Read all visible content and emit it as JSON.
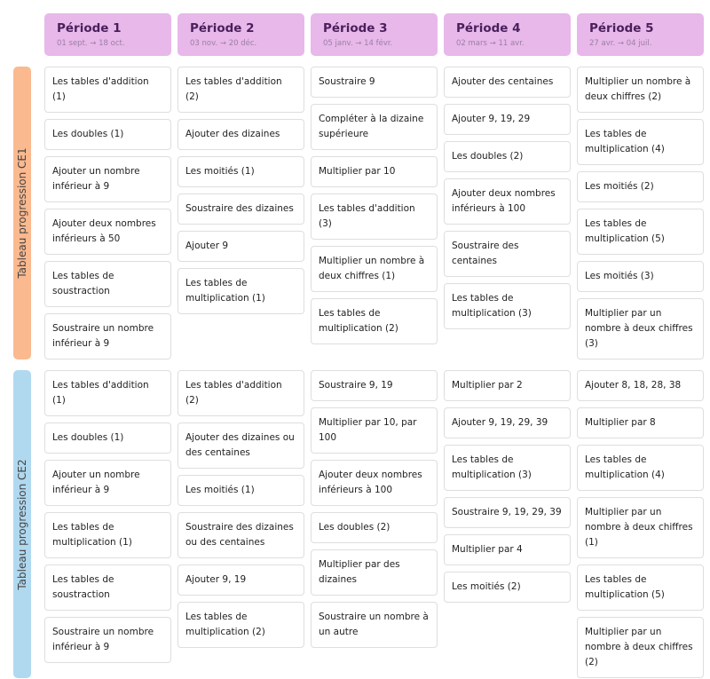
{
  "colors": {
    "header_bg": "#e7b8e9",
    "ce1_bar": "#fbb98f",
    "ce2_bar": "#b0d9f0"
  },
  "periods": [
    {
      "name": "Période 1",
      "dates": "01 sept. → 18 oct."
    },
    {
      "name": "Période 2",
      "dates": "03 nov. → 20 déc."
    },
    {
      "name": "Période 3",
      "dates": "05 janv. → 14 févr."
    },
    {
      "name": "Période 4",
      "dates": "02 mars → 11 avr."
    },
    {
      "name": "Période 5",
      "dates": "27 avr. → 04 juil."
    }
  ],
  "levels": [
    {
      "label": "Tableau progression CE1",
      "columns": [
        [
          "Les tables d'addition (1)",
          "Les doubles (1)",
          "Ajouter un nombre inférieur à 9",
          "Ajouter deux nombres inférieurs à 50",
          "Les tables de soustraction",
          "Soustraire un nombre inférieur à 9"
        ],
        [
          "Les tables d'addition (2)",
          "Ajouter des dizaines",
          "Les moitiés (1)",
          "Soustraire des dizaines",
          "Ajouter 9",
          "Les tables de multiplication (1)"
        ],
        [
          "Soustraire 9",
          "Compléter à la dizaine supérieure",
          "Multiplier par 10",
          "Les tables d'addition (3)",
          "Multiplier un nombre à deux chiffres (1)",
          "Les tables de multiplication (2)"
        ],
        [
          "Ajouter des centaines",
          "Ajouter 9, 19, 29",
          "Les doubles (2)",
          "Ajouter deux nombres inférieurs à 100",
          "Soustraire des centaines",
          "Les tables de multiplication (3)"
        ],
        [
          "Multiplier un nombre à deux chiffres (2)",
          "Les tables de multiplication (4)",
          "Les moitiés (2)",
          "Les tables de multiplication (5)",
          "Les moitiés (3)",
          "Multiplier par un nombre à deux chiffres (3)"
        ]
      ]
    },
    {
      "label": "Tableau progression CE2",
      "columns": [
        [
          "Les tables d'addition (1)",
          "Les doubles (1)",
          "Ajouter un nombre inférieur à 9",
          "Les tables de multiplication (1)",
          "Les tables de soustraction",
          "Soustraire un nombre inférieur à 9"
        ],
        [
          "Les tables d'addition (2)",
          "Ajouter des dizaines ou des centaines",
          "Les moitiés (1)",
          "Soustraire des dizaines ou des centaines",
          "Ajouter 9, 19",
          "Les tables de multiplication (2)"
        ],
        [
          "Soustraire 9, 19",
          "Multiplier par 10, par 100",
          "Ajouter deux nombres inférieurs à 100",
          "Les doubles (2)",
          "Multiplier par des dizaines",
          "Soustraire un nombre à un autre"
        ],
        [
          "Multiplier par 2",
          "Ajouter 9, 19, 29, 39",
          "Les tables de multiplication (3)",
          "Soustraire 9, 19, 29, 39",
          "Multiplier par 4",
          "Les moitiés (2)"
        ],
        [
          "Ajouter 8, 18, 28, 38",
          "Multiplier par 8",
          "Les tables de multiplication (4)",
          "Multiplier par un nombre à deux chiffres (1)",
          "Les tables de multiplication (5)",
          "Multiplier par un nombre à deux chiffres (2)"
        ]
      ]
    }
  ]
}
